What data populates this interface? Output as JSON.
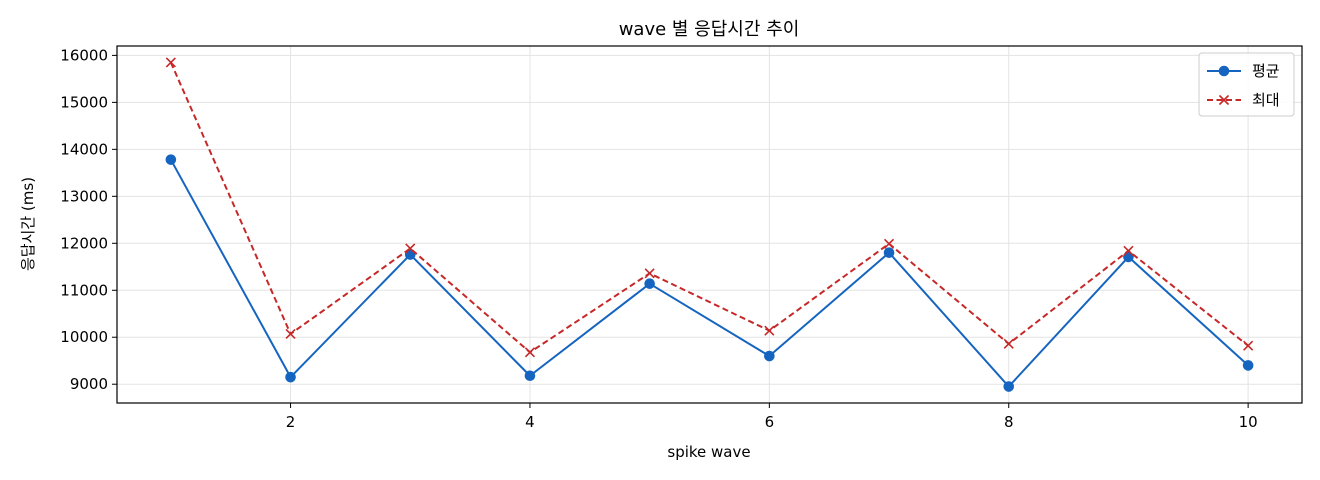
{
  "chart_data": {
    "type": "line",
    "title": "wave 별 응답시간 추이",
    "xlabel": "spike wave",
    "ylabel": "응답시간 (ms)",
    "x": [
      1,
      2,
      3,
      4,
      5,
      6,
      7,
      8,
      9,
      10
    ],
    "xlim": [
      0.55,
      10.45
    ],
    "ylim": [
      8600,
      16200
    ],
    "x_ticks": [
      2,
      4,
      6,
      8,
      10
    ],
    "y_ticks": [
      9000,
      10000,
      11000,
      12000,
      13000,
      14000,
      15000,
      16000
    ],
    "grid": true,
    "legend_position": "top-right",
    "series": [
      {
        "name": "평균",
        "color": "#1565c0",
        "line_style": "solid",
        "marker": "circle",
        "values": [
          13780,
          9150,
          11760,
          9180,
          11140,
          9600,
          11800,
          8950,
          11710,
          9400
        ]
      },
      {
        "name": "최대",
        "color": "#c62828",
        "line_style": "dashed",
        "marker": "x",
        "values": [
          15850,
          10070,
          11890,
          9680,
          11360,
          10140,
          11990,
          9860,
          11840,
          9820
        ]
      }
    ]
  }
}
